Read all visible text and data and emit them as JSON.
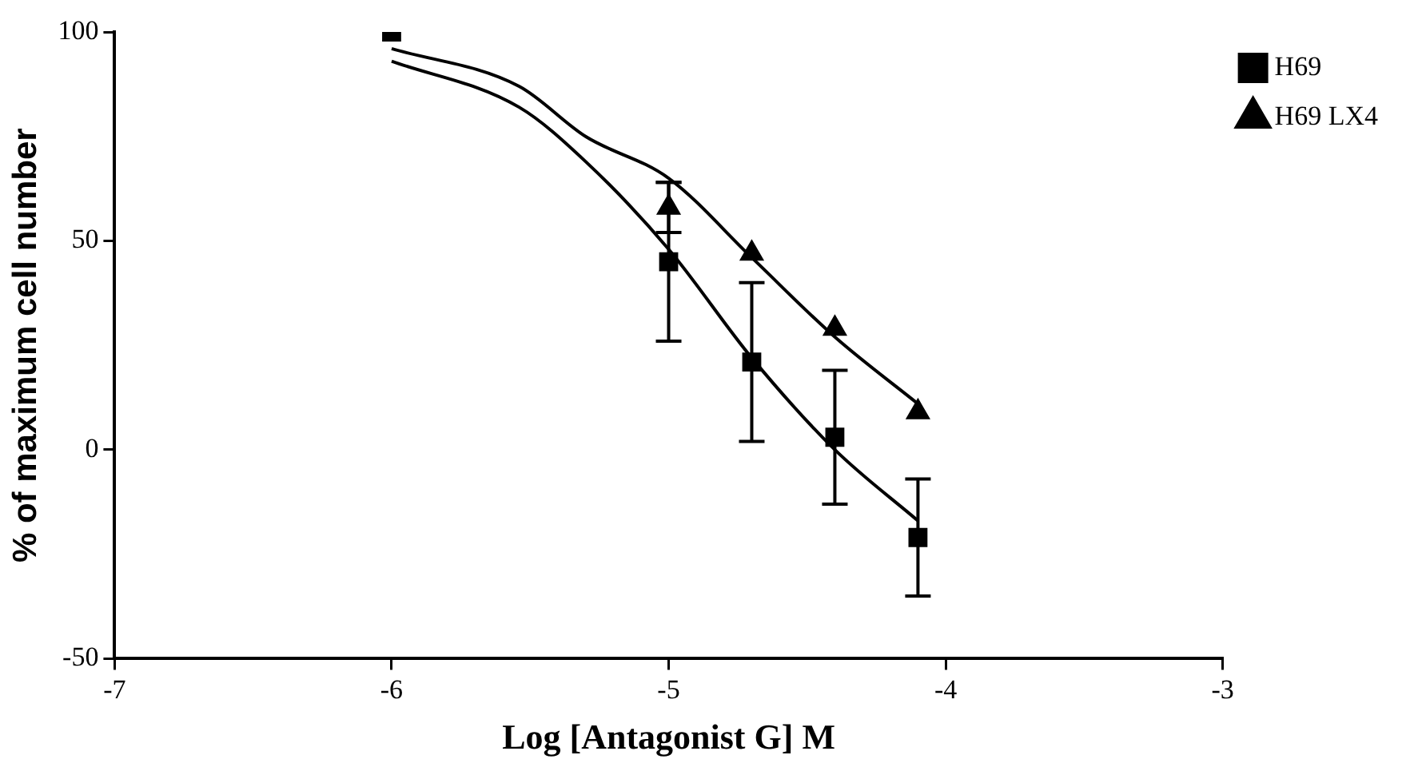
{
  "chart_data": {
    "type": "scatter",
    "xlabel": "Log [Antagonist G] M",
    "ylabel": "% of maximum cell number",
    "xlim": [
      -7,
      -3
    ],
    "xticks": [
      -7,
      -6,
      -5,
      -4,
      -3
    ],
    "ylim": [
      -50,
      100
    ],
    "yticks": [
      -50,
      0,
      50,
      100
    ],
    "grid": false,
    "legend": "top right",
    "series": [
      {
        "name": "H69",
        "color": "#000000",
        "marker": "square",
        "x": [
          -6,
          -5,
          -4.7,
          -4.4,
          -4.1
        ],
        "values": [
          100,
          45,
          21,
          3,
          -21
        ],
        "errors": [
          null,
          19,
          19,
          16,
          14
        ]
      },
      {
        "name": "H69 LX4",
        "color": "#000000",
        "marker": "triangle",
        "x": [
          -5,
          -4.7,
          -4.4,
          -4.1
        ],
        "values": [
          58,
          47,
          29,
          9
        ],
        "errors": [
          6,
          null,
          null,
          null
        ]
      },
      {
        "type": "line",
        "color": "#000000",
        "marker": "none",
        "x": [
          -6,
          -5.54,
          -5.3,
          -5,
          -4.7,
          -4.4,
          -4.1
        ],
        "values": [
          93,
          82,
          69,
          48,
          22,
          0,
          -17
        ]
      },
      {
        "type": "line",
        "color": "#000000",
        "marker": "none",
        "x": [
          -6,
          -5.54,
          -5.3,
          -5,
          -4.7,
          -4.4,
          -4.1
        ],
        "values": [
          96,
          87,
          75,
          65,
          46,
          27,
          11
        ]
      }
    ]
  }
}
